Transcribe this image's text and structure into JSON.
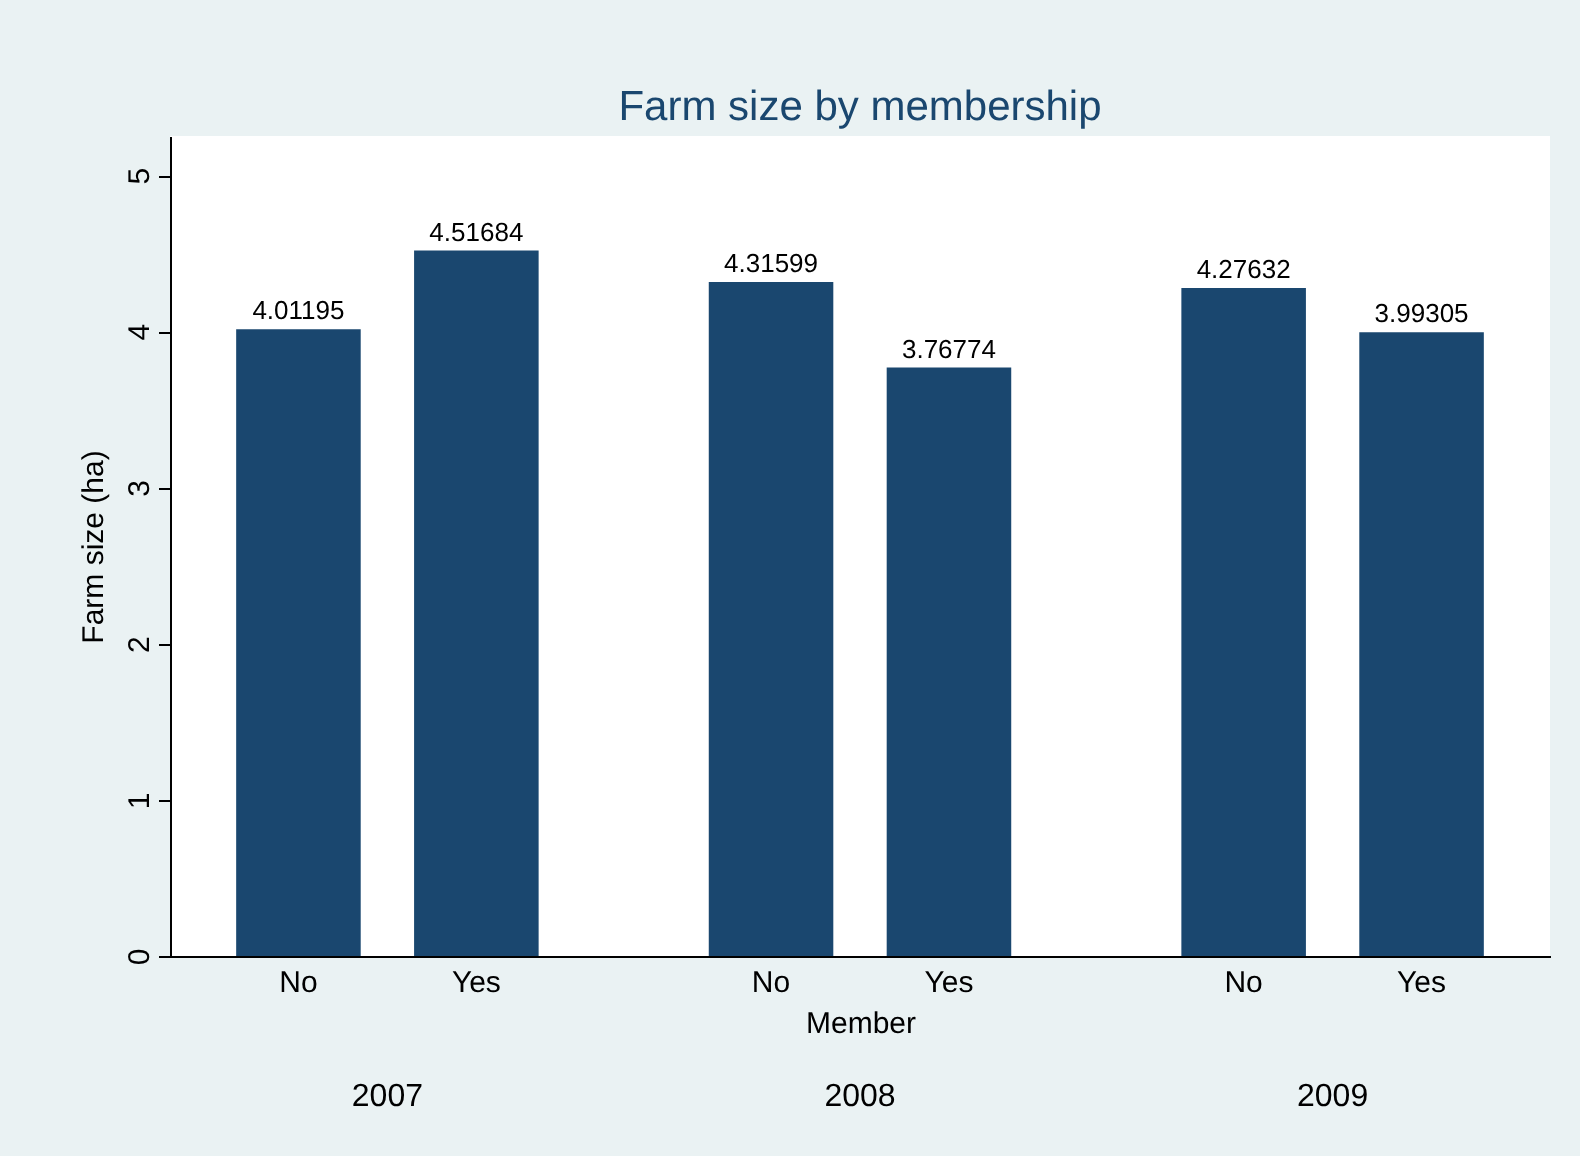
{
  "chart_data": {
    "type": "bar",
    "title": "Farm size by membership",
    "xlabel": "Member",
    "ylabel": "Farm size (ha)",
    "categories": [
      "No",
      "Yes",
      "No",
      "Yes",
      "No",
      "Yes"
    ],
    "values": [
      4.01195,
      4.51684,
      4.31599,
      3.76774,
      4.27632,
      3.99305
    ],
    "color": "#1a476f",
    "ylim": [
      0,
      5.25
    ],
    "yticks": [
      0,
      1,
      2,
      3,
      4,
      5
    ],
    "data_labels": true,
    "annotations": [
      "2007",
      "2008",
      "2009"
    ]
  }
}
